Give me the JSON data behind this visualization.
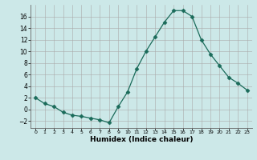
{
  "x": [
    0,
    1,
    2,
    3,
    4,
    5,
    6,
    7,
    8,
    9,
    10,
    11,
    12,
    13,
    14,
    15,
    16,
    17,
    18,
    19,
    20,
    21,
    22,
    23
  ],
  "y": [
    2,
    1,
    0.5,
    -0.5,
    -1,
    -1.2,
    -1.5,
    -1.8,
    -2.3,
    0.5,
    3,
    7,
    10,
    12.5,
    15,
    17,
    17,
    16,
    12,
    9.5,
    7.5,
    5.5,
    4.5,
    3.3
  ],
  "line_color": "#1a6b5a",
  "marker": "D",
  "marker_size": 2.5,
  "bg_color": "#cce8e8",
  "grid_color": "#aaaaaa",
  "xlabel": "Humidex (Indice chaleur)",
  "xlim": [
    -0.5,
    23.5
  ],
  "ylim": [
    -3.2,
    18
  ],
  "yticks": [
    -2,
    0,
    2,
    4,
    6,
    8,
    10,
    12,
    14,
    16
  ],
  "xticks": [
    0,
    1,
    2,
    3,
    4,
    5,
    6,
    7,
    8,
    9,
    10,
    11,
    12,
    13,
    14,
    15,
    16,
    17,
    18,
    19,
    20,
    21,
    22,
    23
  ]
}
